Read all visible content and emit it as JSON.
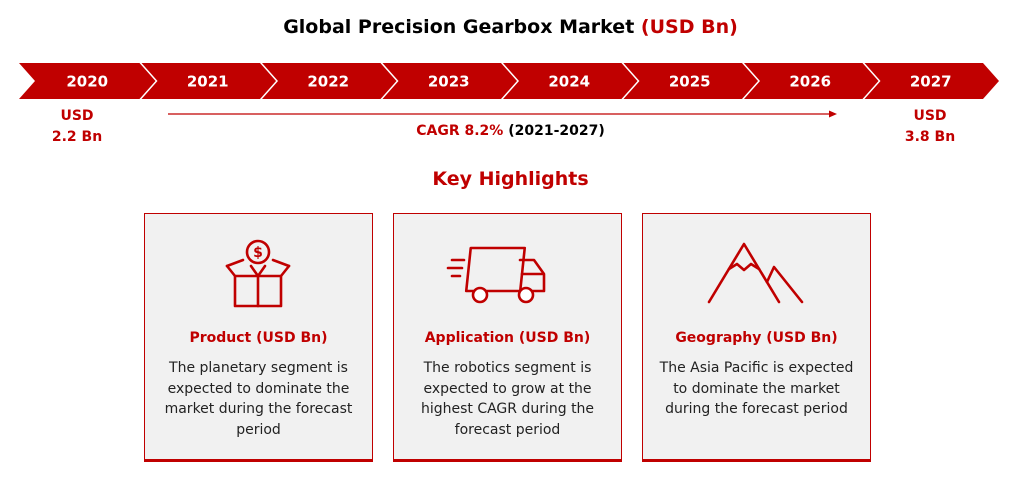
{
  "title": {
    "main": "Global Precision Gearbox Market",
    "unit": "(USD Bn)"
  },
  "timeline": {
    "years": [
      "2020",
      "2021",
      "2022",
      "2023",
      "2024",
      "2025",
      "2026",
      "2027"
    ],
    "start": {
      "currency": "USD",
      "value": "2.2 Bn"
    },
    "end": {
      "currency": "USD",
      "value": "3.8 Bn"
    },
    "cagr": {
      "label": "CAGR 8.2%",
      "period": "(2021-2027)"
    }
  },
  "highlights": {
    "heading": "Key Highlights",
    "cards": [
      {
        "icon": "money-box-icon",
        "title": "Product (USD Bn)",
        "desc": "The planetary segment is expected to dominate the market during the forecast period"
      },
      {
        "icon": "delivery-truck-icon",
        "title": "Application (USD Bn)",
        "desc": "The robotics segment is expected to grow at the highest CAGR during the forecast period"
      },
      {
        "icon": "mountain-icon",
        "title": "Geography (USD Bn)",
        "desc": "The Asia Pacific is expected to dominate the market during the forecast period"
      }
    ]
  },
  "chart_data": {
    "type": "table",
    "title": "Global Precision Gearbox Market (USD Bn)",
    "categories": [
      "2020",
      "2021",
      "2022",
      "2023",
      "2024",
      "2025",
      "2026",
      "2027"
    ],
    "values": {
      "2020": 2.2,
      "2027": 3.8
    },
    "cagr_percent": 8.2,
    "cagr_period": "2021-2027"
  },
  "colors": {
    "accent": "#c00000",
    "card_bg": "#f1f1f1"
  }
}
